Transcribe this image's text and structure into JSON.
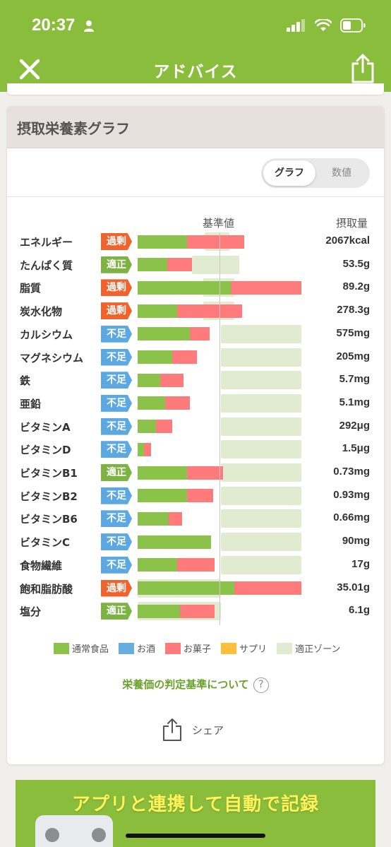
{
  "status_bar": {
    "time": "20:37"
  },
  "nav": {
    "title": "アドバイス"
  },
  "card": {
    "title": "摂取栄養素グラフ",
    "toggle": {
      "graph": "グラフ",
      "number": "数値"
    },
    "col_standard": "基準値",
    "col_intake": "摂取量"
  },
  "colors": {
    "normal_food": "#8bc34a",
    "alcohol": "#67aee0",
    "sweets": "#ff7a7a",
    "supplement": "#ffbf3a",
    "proper_zone": "#e0ebcf",
    "badge_excess": "#f0632d",
    "badge_proper": "#7cb342",
    "badge_low": "#5ca8e2"
  },
  "nutrients": [
    {
      "name": "エネルギー",
      "status": "過剰",
      "status_type": "excess",
      "food": 0.3,
      "sweets": 0.35,
      "zone": [
        0.41,
        0.56
      ],
      "value": "2067kcal"
    },
    {
      "name": "たんぱく質",
      "status": "適正",
      "status_type": "proper",
      "food": 0.18,
      "sweets": 0.15,
      "zone": [
        0.33,
        0.62
      ],
      "value": "53.5g"
    },
    {
      "name": "脂質",
      "status": "過剰",
      "status_type": "excess",
      "food": 0.57,
      "sweets": 0.43,
      "zone": [
        0.4,
        0.59
      ],
      "value": "89.2g"
    },
    {
      "name": "炭水化物",
      "status": "過剰",
      "status_type": "excess",
      "food": 0.24,
      "sweets": 0.4,
      "zone": [
        0.4,
        0.59
      ],
      "value": "278.3g"
    },
    {
      "name": "カルシウム",
      "status": "不足",
      "status_type": "low",
      "food": 0.32,
      "sweets": 0.12,
      "zone": [
        0.51,
        1.0
      ],
      "value": "575mg"
    },
    {
      "name": "マグネシウム",
      "status": "不足",
      "status_type": "low",
      "food": 0.21,
      "sweets": 0.15,
      "zone": [
        0.51,
        1.0
      ],
      "value": "205mg"
    },
    {
      "name": "鉄",
      "status": "不足",
      "status_type": "low",
      "food": 0.14,
      "sweets": 0.14,
      "zone": [
        0.51,
        1.0
      ],
      "value": "5.7mg"
    },
    {
      "name": "亜鉛",
      "status": "不足",
      "status_type": "low",
      "food": 0.17,
      "sweets": 0.15,
      "zone": [
        0.51,
        1.0
      ],
      "value": "5.1mg"
    },
    {
      "name": "ビタミンA",
      "status": "不足",
      "status_type": "low",
      "food": 0.11,
      "sweets": 0.1,
      "zone": [
        0.51,
        1.0
      ],
      "value": "292μg"
    },
    {
      "name": "ビタミンD",
      "status": "不足",
      "status_type": "low",
      "food": 0.04,
      "sweets": 0.04,
      "zone": [
        0.51,
        1.0
      ],
      "value": "1.5μg"
    },
    {
      "name": "ビタミンB1",
      "status": "適正",
      "status_type": "proper",
      "food": 0.3,
      "sweets": 0.22,
      "zone": [
        0.51,
        1.0
      ],
      "value": "0.73mg"
    },
    {
      "name": "ビタミンB2",
      "status": "不足",
      "status_type": "low",
      "food": 0.3,
      "sweets": 0.16,
      "zone": [
        0.51,
        1.0
      ],
      "value": "0.93mg"
    },
    {
      "name": "ビタミンB6",
      "status": "不足",
      "status_type": "low",
      "food": 0.19,
      "sweets": 0.08,
      "zone": [
        0.51,
        1.0
      ],
      "value": "0.66mg"
    },
    {
      "name": "ビタミンC",
      "status": "不足",
      "status_type": "low",
      "food": 0.45,
      "sweets": 0.0,
      "zone": [
        0.51,
        1.0
      ],
      "value": "90mg"
    },
    {
      "name": "食物繊維",
      "status": "不足",
      "status_type": "low",
      "food": 0.24,
      "sweets": 0.23,
      "zone": [
        0.51,
        1.0
      ],
      "value": "17g"
    },
    {
      "name": "飽和脂肪酸",
      "status": "過剰",
      "status_type": "excess",
      "food": 0.59,
      "sweets": 0.41,
      "zone": [
        0.0,
        0.51
      ],
      "value": "35.01g"
    },
    {
      "name": "塩分",
      "status": "適正",
      "status_type": "proper",
      "food": 0.26,
      "sweets": 0.21,
      "zone": [
        0.0,
        0.51
      ],
      "value": "6.1g"
    }
  ],
  "legend": [
    {
      "label": "通常食品",
      "color_key": "normal_food"
    },
    {
      "label": "お酒",
      "color_key": "alcohol"
    },
    {
      "label": "お菓子",
      "color_key": "sweets"
    },
    {
      "label": "サプリ",
      "color_key": "supplement"
    },
    {
      "label": "適正ゾーン",
      "color_key": "proper_zone"
    }
  ],
  "criteria_link": "栄養価の判定基準について",
  "criteria_help": "?",
  "share_label": "シェア",
  "banner_text": "アプリと連携して自動で記録"
}
